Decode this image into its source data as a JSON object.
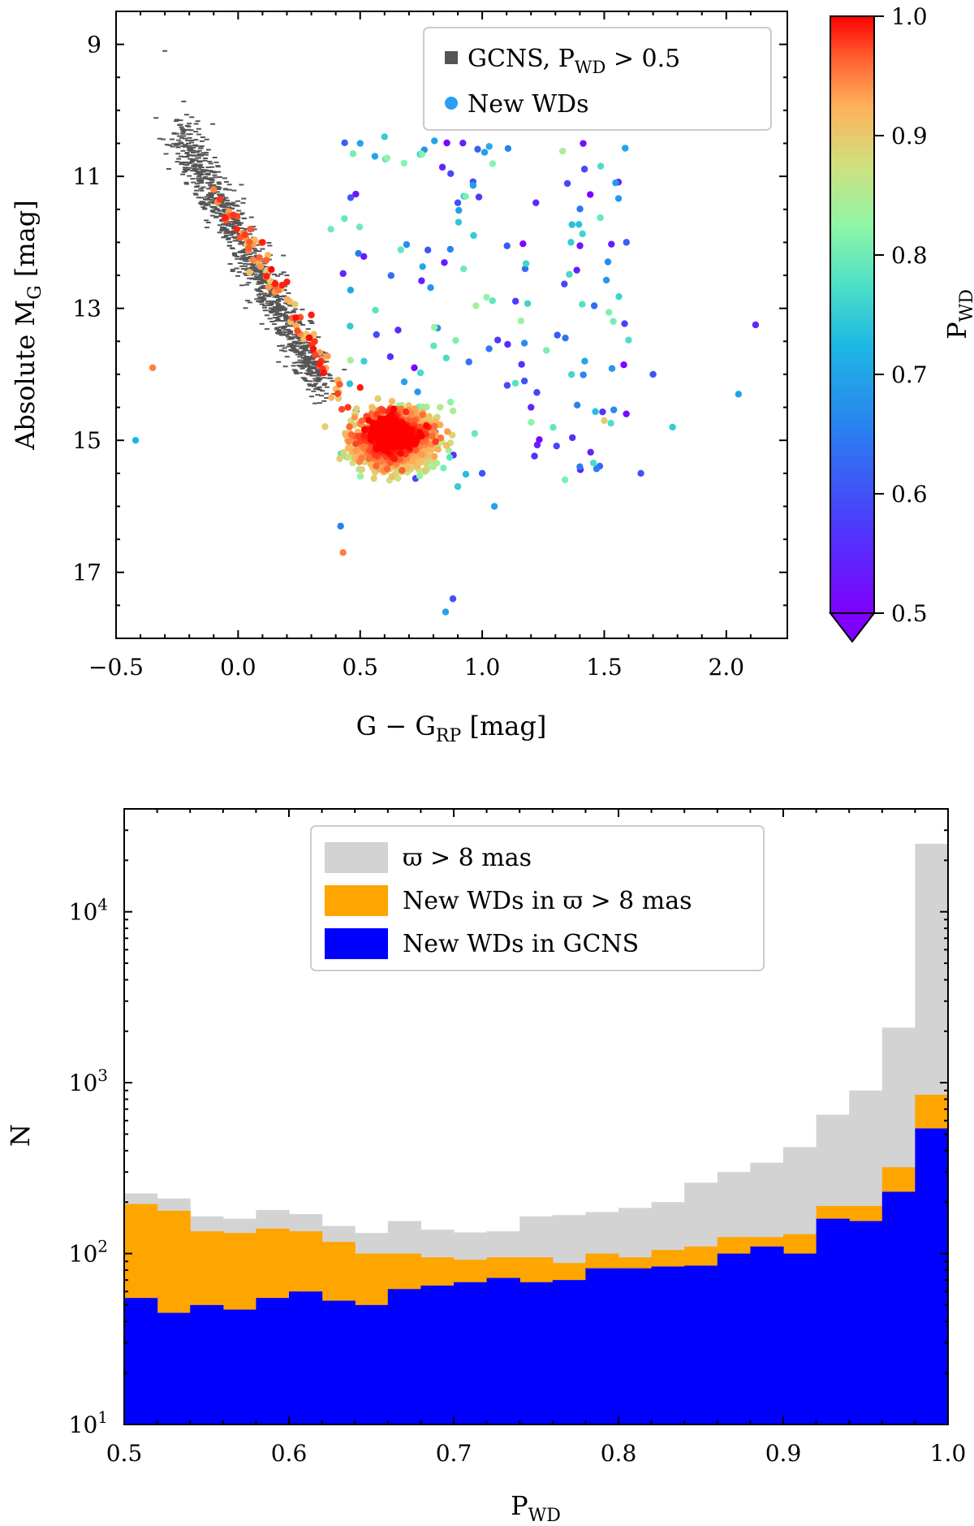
{
  "chart_data": [
    {
      "type": "scatter",
      "xlabel": "G − G",
      "xlabel_sub": "RP",
      "xlabel_unit": " [mag]",
      "ylabel": "Absolute M",
      "ylabel_sub": "G",
      "ylabel_unit": " [mag]",
      "xlim": [
        -0.5,
        2.25
      ],
      "ylim": [
        18.0,
        8.5
      ],
      "x_ticks": [
        -0.5,
        0.0,
        0.5,
        1.0,
        1.5,
        2.0
      ],
      "x_tick_labels": [
        "−0.5",
        "0.0",
        "0.5",
        "1.0",
        "1.5",
        "2.0"
      ],
      "y_ticks": [
        9,
        11,
        13,
        15,
        17
      ],
      "y_tick_labels": [
        "9",
        "11",
        "13",
        "15",
        "17"
      ],
      "legend": {
        "placement": "top-right",
        "entries": [
          {
            "label": "GCNS, P",
            "sub": "WD",
            "suffix": " > 0.5",
            "color": "#555555",
            "marker": "square"
          },
          {
            "label": "New WDs",
            "sub": "",
            "suffix": "",
            "color": "#2a9df4",
            "marker": "circle"
          }
        ]
      },
      "series": [
        {
          "name": "GCNS, P_WD > 0.5",
          "color": "#555555",
          "sequence": {
            "x0": -0.25,
            "y0": 10.3,
            "x1": 0.35,
            "y1": 14.2
          },
          "x_spread": 0.15,
          "points": [
            [
              -0.05,
              11.5
            ],
            [
              0.1,
              12.1
            ],
            [
              0.2,
              12.5
            ],
            [
              0.3,
              13.2
            ],
            [
              -0.2,
              10.2
            ],
            [
              -0.3,
              9.1
            ]
          ]
        },
        {
          "name": "New WDs",
          "color_by": "P_WD",
          "points": [
            [
              0.45,
              14.5,
              0.98
            ],
            [
              0.55,
              14.8,
              0.99
            ],
            [
              0.6,
              15.0,
              0.97
            ],
            [
              0.7,
              15.2,
              0.92
            ],
            [
              0.5,
              14.2,
              0.99
            ],
            [
              0.65,
              15.3,
              0.93
            ],
            [
              0.8,
              15.4,
              0.85
            ],
            [
              0.9,
              15.7,
              0.75
            ],
            [
              1.0,
              15.5,
              0.6
            ],
            [
              1.2,
              14.5,
              0.55
            ],
            [
              0.5,
              10.5,
              0.7
            ],
            [
              0.6,
              10.4,
              0.75
            ],
            [
              0.68,
              10.8,
              0.82
            ],
            [
              0.9,
              11.4,
              0.6
            ],
            [
              1.22,
              11.4,
              0.55
            ],
            [
              0.38,
              11.8,
              0.8
            ],
            [
              1.5,
              14.7,
              0.9
            ],
            [
              1.78,
              14.8,
              0.75
            ],
            [
              2.05,
              14.3,
              0.7
            ],
            [
              2.12,
              13.25,
              0.55
            ],
            [
              1.65,
              15.5,
              0.6
            ],
            [
              -0.42,
              15.0,
              0.72
            ],
            [
              -0.35,
              13.9,
              0.95
            ],
            [
              0.85,
              17.6,
              0.7
            ],
            [
              0.88,
              17.4,
              0.6
            ],
            [
              0.42,
              16.3,
              0.65
            ],
            [
              0.43,
              16.7,
              0.95
            ],
            [
              1.05,
              16.0,
              0.7
            ],
            [
              1.4,
              15.4,
              0.65
            ],
            [
              1.42,
              13.8,
              0.7
            ],
            [
              1.7,
              14.0,
              0.6
            ],
            [
              0.1,
              12.0,
              0.99
            ],
            [
              0.2,
              12.6,
              0.99
            ],
            [
              0.3,
              13.1,
              0.99
            ],
            [
              -0.1,
              11.2,
              0.95
            ],
            [
              0.05,
              11.8,
              0.97
            ]
          ]
        }
      ],
      "colorbar": {
        "label": "P",
        "label_sub": "WD",
        "range": [
          0.5,
          1.0
        ],
        "ticks": [
          0.5,
          0.6,
          0.7,
          0.8,
          0.9,
          1.0
        ],
        "tick_labels": [
          "0.5",
          "0.6",
          "0.7",
          "0.8",
          "0.9",
          "1.0"
        ],
        "colormap": "rainbow",
        "extend": "min"
      }
    },
    {
      "type": "bar",
      "subtype": "histogram",
      "xlabel": "P",
      "xlabel_sub": "WD",
      "ylabel": "N",
      "y_scale": "log",
      "xlim": [
        0.5,
        1.0
      ],
      "ylim": [
        10,
        40000
      ],
      "x_ticks": [
        0.5,
        0.6,
        0.7,
        0.8,
        0.9,
        1.0
      ],
      "x_tick_labels": [
        "0.5",
        "0.6",
        "0.7",
        "0.8",
        "0.9",
        "1.0"
      ],
      "y_ticks": [
        10,
        100,
        1000,
        10000
      ],
      "y_tick_labels": [
        {
          "base": "10",
          "exp": "1"
        },
        {
          "base": "10",
          "exp": "2"
        },
        {
          "base": "10",
          "exp": "3"
        },
        {
          "base": "10",
          "exp": "4"
        }
      ],
      "bin_edges": [
        0.5,
        0.52,
        0.54,
        0.56,
        0.58,
        0.6,
        0.62,
        0.64,
        0.66,
        0.68,
        0.7,
        0.72,
        0.74,
        0.76,
        0.78,
        0.8,
        0.82,
        0.84,
        0.86,
        0.88,
        0.9,
        0.92,
        0.94,
        0.96,
        0.98,
        1.0
      ],
      "legend": {
        "placement": "top-center",
        "entries": [
          {
            "label": "ϖ > 8 mas",
            "color": "#d3d3d3"
          },
          {
            "label": "New WDs in ϖ > 8 mas",
            "color": "#ffa500"
          },
          {
            "label": "New WDs in GCNS",
            "color": "#0000ff"
          }
        ]
      },
      "series": [
        {
          "name": "ϖ > 8 mas",
          "color": "#d3d3d3",
          "values": [
            225,
            210,
            165,
            160,
            180,
            170,
            145,
            132,
            155,
            138,
            133,
            135,
            165,
            168,
            175,
            185,
            200,
            260,
            300,
            340,
            420,
            650,
            900,
            2100,
            25000
          ]
        },
        {
          "name": "New WDs in ϖ > 8 mas",
          "color": "#ffa500",
          "values": [
            195,
            178,
            135,
            132,
            140,
            135,
            117,
            100,
            100,
            95,
            92,
            95,
            95,
            88,
            100,
            95,
            105,
            110,
            125,
            125,
            130,
            190,
            190,
            320,
            850
          ]
        },
        {
          "name": "New WDs in GCNS",
          "color": "#0000ff",
          "values": [
            55,
            45,
            50,
            47,
            55,
            60,
            53,
            50,
            62,
            65,
            68,
            72,
            68,
            70,
            82,
            82,
            84,
            85,
            100,
            110,
            100,
            160,
            155,
            230,
            540
          ]
        }
      ]
    }
  ]
}
